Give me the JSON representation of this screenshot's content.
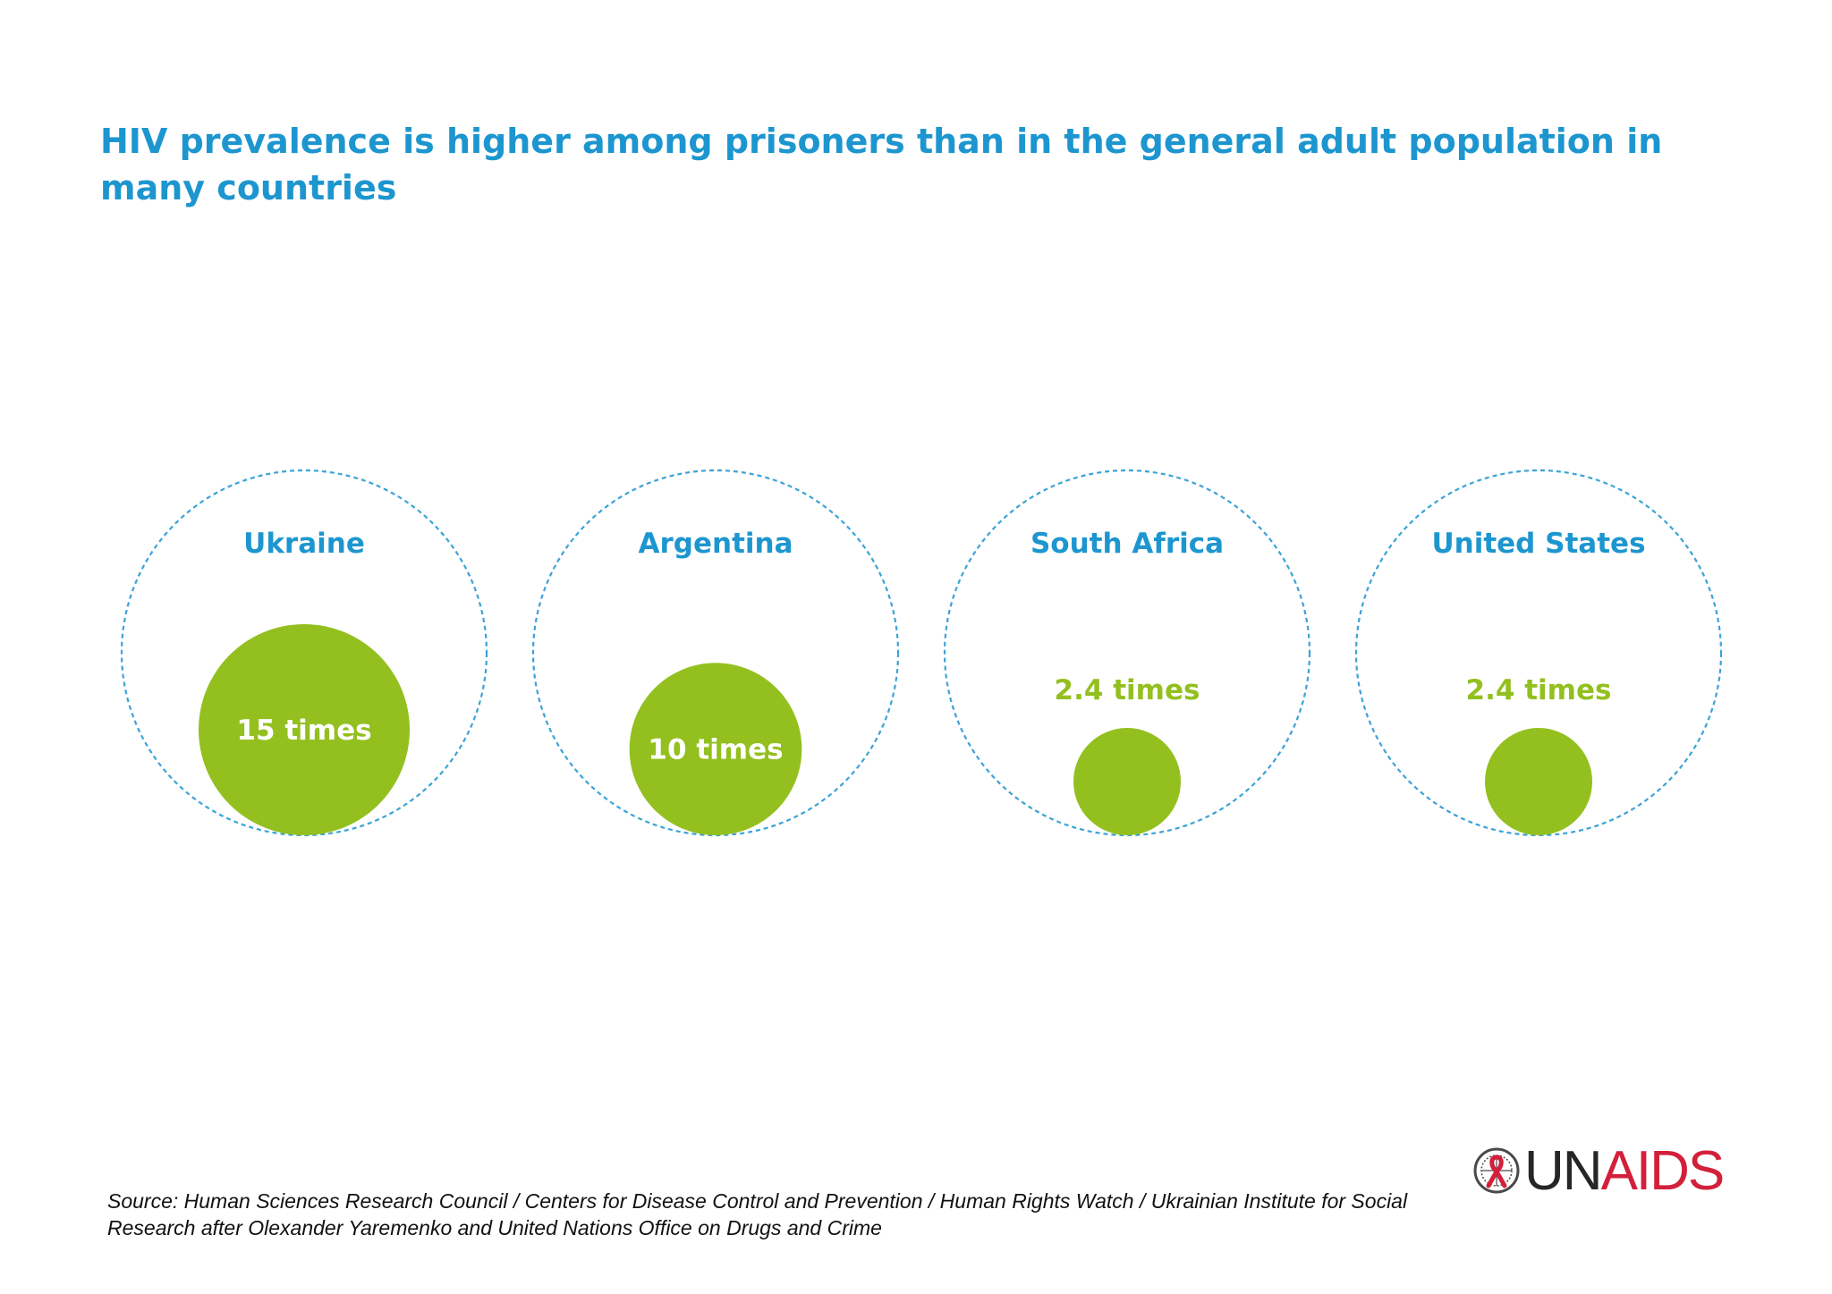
{
  "colors": {
    "title": "#1d96cf",
    "dashed": "#3ba3d6",
    "bubble": "#93c01f",
    "bubble_label_inside": "#ffffff",
    "logo_un": "#262626",
    "logo_aids": "#d3203a"
  },
  "chart_data": {
    "type": "bubble",
    "title": "HIV prevalence is higher among prisoners than in the general adult population in many countries",
    "unit_label": "times",
    "series": [
      {
        "country": "Ukraine",
        "multiplier": 15,
        "label": "15 times"
      },
      {
        "country": "Argentina",
        "multiplier": 10,
        "label": "10 times"
      },
      {
        "country": "South Africa",
        "multiplier": 2.4,
        "label": "2.4 times"
      },
      {
        "country": "United States",
        "multiplier": 2.4,
        "label": "2.4 times"
      }
    ]
  },
  "source": "Source: Human Sciences Research Council / Centers for Disease Control and Prevention / Human Rights Watch / Ukrainian Institute for Social Research after Olexander Yaremenko and United Nations Office on Drugs and Crime",
  "logo": {
    "un": "UN",
    "aids": "AIDS",
    "icon": "un-emblem-red-ribbon-icon"
  }
}
